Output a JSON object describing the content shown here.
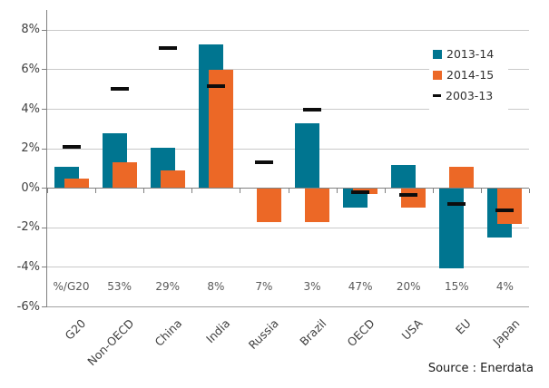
{
  "source": "Source : Enerdata",
  "colors": {
    "series_2013_14": "#007590",
    "series_2014_15": "#EC6826",
    "series_2003_13": "#0d0d0d",
    "gridline": "#c9c9c9",
    "axis": "#808080"
  },
  "legend": {
    "items": [
      {
        "label": "2013-14",
        "color": "#007590",
        "marker": "square"
      },
      {
        "label": "2014-15",
        "color": "#EC6826",
        "marker": "square"
      },
      {
        "label": "2003-13",
        "color": "#0d0d0d",
        "marker": "dash"
      }
    ]
  },
  "chart_data": {
    "type": "bar",
    "title": "",
    "ylabel": "",
    "xlabel": "",
    "unit": "%",
    "grid": true,
    "legend_position": "upper-right",
    "ylim": [
      -6,
      9
    ],
    "categories": [
      "G20",
      "Non-OECD",
      "China",
      "India",
      "Russia",
      "Brazil",
      "OECD",
      "USA",
      "EU",
      "Japan"
    ],
    "share_of_g20_row": [
      "%/G20",
      "53%",
      "29%",
      "8%",
      "7%",
      "3%",
      "47%",
      "20%",
      "15%",
      "4%"
    ],
    "series": [
      {
        "name": "2013-14",
        "type": "bar",
        "color": "#007590",
        "values": [
          1.1,
          2.8,
          2.05,
          7.3,
          0,
          3.3,
          -1.0,
          1.2,
          -4.05,
          -2.5
        ]
      },
      {
        "name": "2014-15",
        "type": "bar",
        "color": "#EC6826",
        "values": [
          0.5,
          1.3,
          0.9,
          6.0,
          -1.7,
          -1.7,
          -0.3,
          -1.0,
          1.1,
          -1.8
        ]
      },
      {
        "name": "2003-13",
        "type": "dash",
        "color": "#0d0d0d",
        "values": [
          2.1,
          5.05,
          7.1,
          5.15,
          1.3,
          4.0,
          -0.2,
          -0.35,
          -0.8,
          -1.1
        ]
      }
    ],
    "yticks": [
      {
        "label": "8%",
        "value": 8
      },
      {
        "label": "6%",
        "value": 6
      },
      {
        "label": "4%",
        "value": 4
      },
      {
        "label": "2%",
        "value": 2
      },
      {
        "label": "0%",
        "value": 0
      },
      {
        "label": "-2%",
        "value": -2
      },
      {
        "label": "-4%",
        "value": -4
      },
      {
        "label": "-6%",
        "value": -6
      }
    ]
  }
}
